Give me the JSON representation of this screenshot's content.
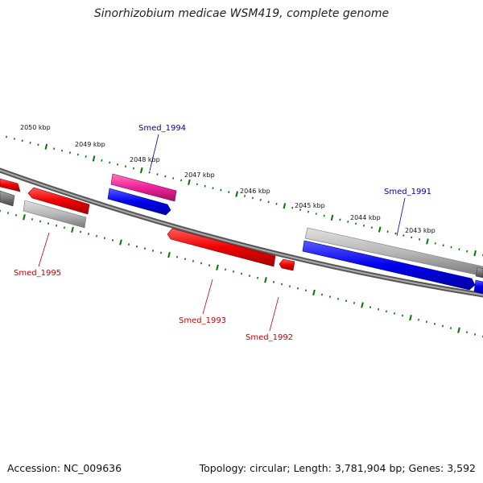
{
  "title": "Sinorhizobium medicae WSM419, complete genome",
  "footer": {
    "accession": "Accession: NC_009636",
    "topology": "Topology: circular; Length: 3,781,904 bp; Genes: 3,592"
  },
  "scale": [
    {
      "label": "2050 kbp"
    },
    {
      "label": "2049 kbp"
    },
    {
      "label": "2048 kbp"
    },
    {
      "label": "2047 kbp"
    },
    {
      "label": "2046 kbp"
    },
    {
      "label": "2045 kbp"
    },
    {
      "label": "2044 kbp"
    },
    {
      "label": "2043 kbp"
    }
  ],
  "genes": [
    {
      "name": "Smed_1994",
      "color": "#0000aa"
    },
    {
      "name": "Smed_1991",
      "color": "#0000aa"
    },
    {
      "name": "Smed_1995",
      "color": "#cc0000"
    },
    {
      "name": "Smed_1993",
      "color": "#cc0000"
    },
    {
      "name": "Smed_1992",
      "color": "#cc0000"
    }
  ],
  "colors": {
    "forward_cds": "#0000ee",
    "reverse_cds": "#ee0000",
    "rna": "#ee2299",
    "other": "#b0b0b0",
    "backbone": "#777777",
    "ticks": "#007700"
  }
}
